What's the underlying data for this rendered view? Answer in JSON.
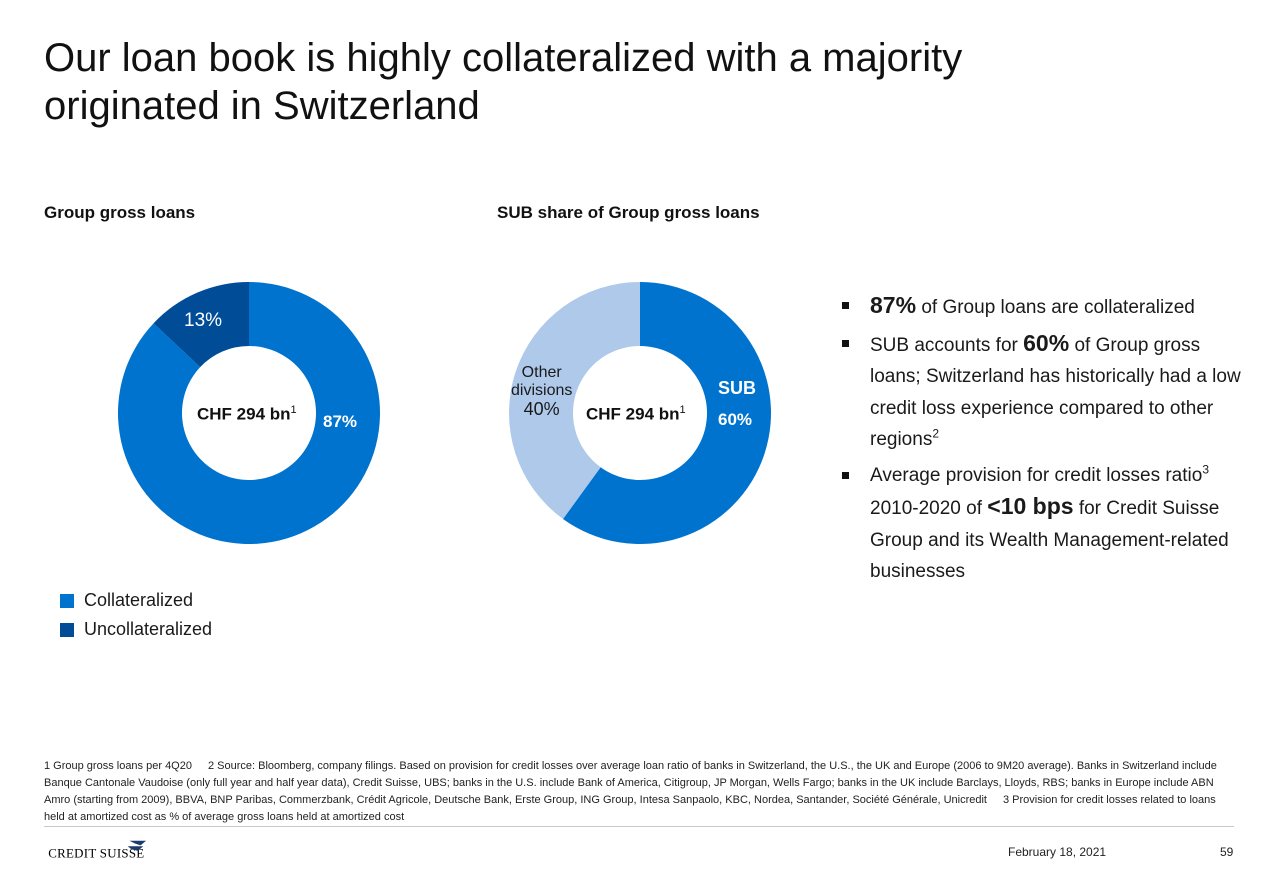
{
  "title": {
    "line1": "Our loan book is highly collateralized with a majority",
    "line2": "originated in Switzerland"
  },
  "colors": {
    "primary_blue": "#0073CF",
    "dark_blue": "#004C97",
    "light_blue": "#AEC9EA"
  },
  "chart_data": [
    {
      "type": "pie",
      "title": "Group gross loans",
      "center_label": "CHF 294 bn",
      "center_superscript": "1",
      "slices": [
        {
          "name": "Collateralized",
          "value": 87,
          "label": "87%",
          "color": "#0073CF"
        },
        {
          "name": "Uncollateralized",
          "value": 13,
          "label": "13%",
          "color": "#004C97"
        }
      ],
      "legend": [
        "Collateralized",
        "Uncollateralized"
      ],
      "legend_position": "bottom-left"
    },
    {
      "type": "pie",
      "title": "SUB share of Group gross loans",
      "center_label": "CHF 294 bn",
      "center_superscript": "1",
      "slices": [
        {
          "name": "SUB",
          "value": 60,
          "label": "60%",
          "color": "#0073CF"
        },
        {
          "name": "Other divisions",
          "value": 40,
          "label": "40%",
          "color": "#AEC9EA"
        }
      ]
    }
  ],
  "labels": {
    "left_uncollat_pct": "13%",
    "left_collat_pct": "87%",
    "right_other_line1": "Other",
    "right_other_line2": "divisions",
    "right_other_pct": "40%",
    "right_sub_name": "SUB",
    "right_sub_pct": "60%"
  },
  "bullets": {
    "b1_big": "87%",
    "b1_rest": " of Group loans are collateralized",
    "b2_pre": "SUB accounts for ",
    "b2_big": "60%",
    "b2_rest": " of Group gross loans; Switzerland has historically had a low credit loss experience compared to other regions",
    "b2_sup": "2",
    "b3_pre": "Average provision for credit losses ratio",
    "b3_sup": "3",
    "b3_mid": " 2010-2020 of ",
    "b3_big": "<10 bps",
    "b3_rest": " for Credit Suisse Group and its Wealth Management-related businesses"
  },
  "footnotes": {
    "n1": "1 Group gross loans per 4Q20",
    "n2": "2 Source: Bloomberg, company filings. Based on provision for credit losses over average loan ratio of banks in Switzerland, the U.S., the UK and Europe (2006 to 9M20 average). Banks in Switzerland include Banque Cantonale Vaudoise (only full year and half year data), Credit Suisse, UBS; banks in the U.S. include Bank of America, Citigroup, JP Morgan, Wells Fargo; banks in the UK include Barclays, Lloyds, RBS; banks in Europe include ABN Amro (starting from 2009), BBVA, BNP Paribas, Commerzbank, Crédit Agricole, Deutsche Bank, Erste Group, ING Group, Intesa Sanpaolo, KBC, Nordea, Santander, Société Générale, Unicredit",
    "n3": "3 Provision for credit losses related to loans held at amortized cost as % of average gross loans held at amortized cost"
  },
  "footer": {
    "logo": "CREDIT SUISSE",
    "date": "February 18, 2021",
    "page": "59"
  }
}
